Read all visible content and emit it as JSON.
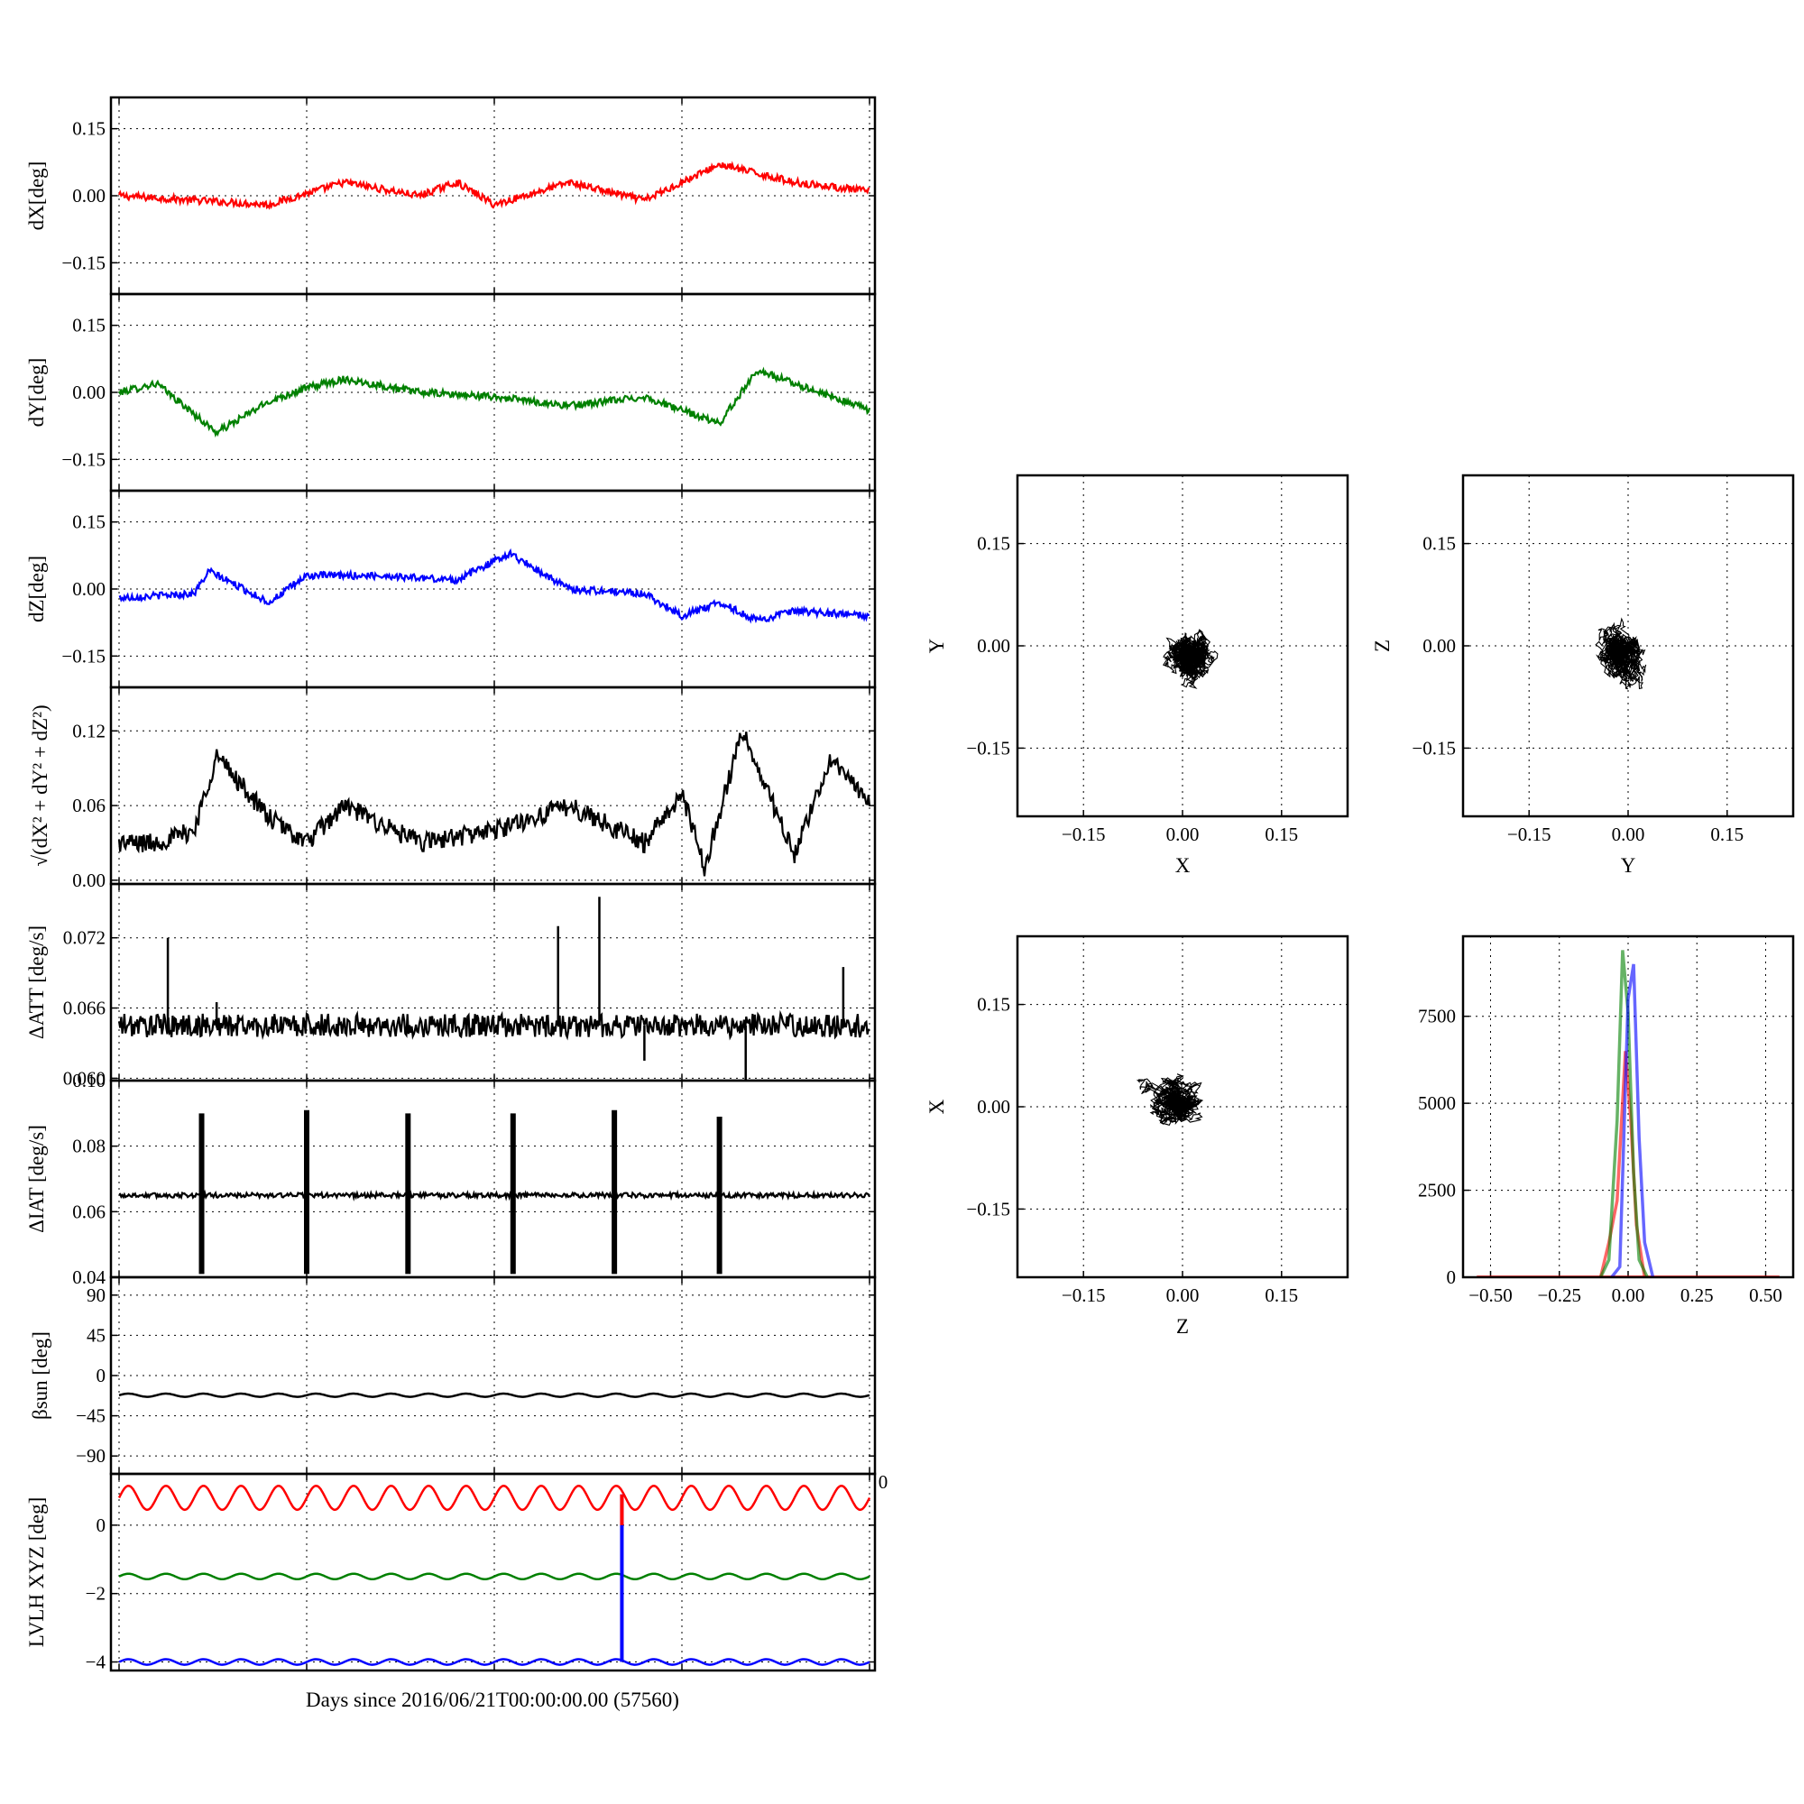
{
  "figure": {
    "xlabel": "Days since 2016/06/21T00:00:00.00 (57560)",
    "stray_tick": "0"
  },
  "colors": {
    "red": "#ff0000",
    "green": "#008000",
    "blue": "#0000ff",
    "black": "#000000"
  },
  "chart_data": [
    {
      "id": "dX",
      "type": "line",
      "ylabel": "dX[deg]",
      "ylim": [
        -0.22,
        0.22
      ],
      "yticks": [
        -0.15,
        0.0,
        0.15
      ],
      "yticklabels": [
        "−0.15",
        "0.00",
        "0.15"
      ],
      "grid": true,
      "series": [
        {
          "color": "red",
          "x": [
            0,
            10,
            20,
            30,
            40,
            45,
            50,
            60,
            70,
            80,
            90,
            100
          ],
          "values": [
            0.0,
            -0.01,
            -0.02,
            0.03,
            0.0,
            0.03,
            -0.02,
            0.03,
            -0.01,
            0.07,
            0.03,
            0.01
          ]
        }
      ]
    },
    {
      "id": "dY",
      "type": "line",
      "ylabel": "dY[deg]",
      "ylim": [
        -0.22,
        0.22
      ],
      "yticks": [
        -0.15,
        0.0,
        0.15
      ],
      "yticklabels": [
        "−0.15",
        "0.00",
        "0.15"
      ],
      "grid": true,
      "series": [
        {
          "color": "green",
          "x": [
            0,
            5,
            13,
            20,
            25,
            30,
            40,
            50,
            60,
            70,
            80,
            85,
            90,
            100
          ],
          "values": [
            0.0,
            0.02,
            -0.09,
            -0.02,
            0.01,
            0.03,
            0.0,
            -0.01,
            -0.03,
            -0.01,
            -0.07,
            0.05,
            0.02,
            -0.04
          ]
        }
      ]
    },
    {
      "id": "dZ",
      "type": "line",
      "ylabel": "dZ[deg]",
      "ylim": [
        -0.22,
        0.22
      ],
      "yticks": [
        -0.15,
        0.0,
        0.15
      ],
      "yticklabels": [
        "−0.15",
        "0.00",
        "0.15"
      ],
      "grid": true,
      "series": [
        {
          "color": "blue",
          "x": [
            0,
            10,
            12,
            20,
            25,
            35,
            45,
            52,
            60,
            70,
            75,
            80,
            85,
            90,
            100
          ],
          "values": [
            -0.02,
            -0.01,
            0.04,
            -0.03,
            0.03,
            0.03,
            0.02,
            0.08,
            0.0,
            -0.01,
            -0.06,
            -0.03,
            -0.07,
            -0.05,
            -0.06
          ]
        }
      ]
    },
    {
      "id": "norm",
      "type": "line",
      "ylabel": "√(dX² + dY² + dZ²)",
      "ylim": [
        -0.003,
        0.155
      ],
      "yticks": [
        0.0,
        0.06,
        0.12
      ],
      "yticklabels": [
        "0.00",
        "0.06",
        "0.12"
      ],
      "grid": true,
      "series": [
        {
          "color": "black",
          "x": [
            0,
            5,
            10,
            13,
            20,
            25,
            30,
            40,
            50,
            60,
            70,
            75,
            78,
            83,
            90,
            95,
            100
          ],
          "values": [
            0.03,
            0.03,
            0.04,
            0.1,
            0.05,
            0.03,
            0.06,
            0.03,
            0.04,
            0.06,
            0.03,
            0.07,
            0.01,
            0.12,
            0.02,
            0.1,
            0.06
          ]
        }
      ]
    },
    {
      "id": "dATT",
      "type": "line",
      "ylabel": "ΔATT [deg/s]",
      "ylim": [
        0.0598,
        0.0766
      ],
      "yticks": [
        0.06,
        0.066,
        0.072
      ],
      "yticklabels": [
        "0.060",
        "0.066",
        "0.072"
      ],
      "grid": true,
      "series": [
        {
          "color": "black",
          "x": [
            0,
            6.5,
            13,
            58.5,
            64,
            70,
            83.5,
            96.5,
            100
          ],
          "values": [
            0.0645,
            0.072,
            0.0665,
            0.073,
            0.0755,
            0.0615,
            0.0595,
            0.0695,
            0.0645
          ]
        }
      ]
    },
    {
      "id": "dIAT",
      "type": "line",
      "ylabel": "ΔIAT [deg/s]",
      "ylim": [
        0.04,
        0.1
      ],
      "yticks": [
        0.04,
        0.06,
        0.08,
        0.1
      ],
      "yticklabels": [
        "0.04",
        "0.06",
        "0.08",
        "0.10"
      ],
      "grid": true,
      "series": [
        {
          "color": "black",
          "x": [
            0,
            11,
            25,
            38.5,
            52.5,
            66,
            80,
            100
          ],
          "values": [
            0.065,
            0.09,
            0.091,
            0.09,
            0.09,
            0.091,
            0.089,
            0.065
          ]
        }
      ]
    },
    {
      "id": "beta",
      "type": "line",
      "ylabel": "βsun [deg]",
      "ylim": [
        -110,
        110
      ],
      "yticks": [
        -90,
        -45,
        0,
        45,
        90
      ],
      "yticklabels": [
        "−90",
        "−45",
        "0",
        "45",
        "90"
      ],
      "grid": true,
      "series": [
        {
          "color": "black",
          "x": [
            0,
            100
          ],
          "values": [
            -22,
            -22
          ]
        }
      ]
    },
    {
      "id": "lvlh",
      "type": "line",
      "ylabel": "LVLH XYZ [deg]",
      "ylim": [
        -4.25,
        1.5
      ],
      "yticks": [
        -4,
        -2,
        0
      ],
      "yticklabels": [
        "−4",
        "−2",
        "0"
      ],
      "grid": true,
      "series": [
        {
          "color": "red",
          "x": [
            0,
            100
          ],
          "values": [
            0.8,
            0.8
          ]
        },
        {
          "color": "green",
          "x": [
            0,
            100
          ],
          "values": [
            -1.5,
            -1.5
          ]
        },
        {
          "color": "blue",
          "x": [
            0,
            100
          ],
          "values": [
            -4.0,
            -4.0
          ]
        }
      ]
    },
    {
      "id": "scatter_xy",
      "type": "scatter",
      "xlabel": "X",
      "ylabel": "Y",
      "xlim": [
        -0.25,
        0.25
      ],
      "ylim": [
        -0.25,
        0.25
      ],
      "xticks": [
        -0.15,
        0.0,
        0.15
      ],
      "xticklabels": [
        "−0.15",
        "0.00",
        "0.15"
      ],
      "yticks": [
        -0.15,
        0.0,
        0.15
      ],
      "yticklabels": [
        "−0.15",
        "0.00",
        "0.15"
      ],
      "grid": true,
      "cluster": {
        "center": [
          0.01,
          -0.02
        ],
        "spread": [
          0.035,
          0.038
        ]
      }
    },
    {
      "id": "scatter_yz",
      "type": "scatter",
      "xlabel": "Y",
      "ylabel": "Z",
      "xlim": [
        -0.25,
        0.25
      ],
      "ylim": [
        -0.25,
        0.25
      ],
      "xticks": [
        -0.15,
        0.0,
        0.15
      ],
      "xticklabels": [
        "−0.15",
        "0.00",
        "0.15"
      ],
      "yticks": [
        -0.15,
        0.0,
        0.15
      ],
      "yticklabels": [
        "−0.15",
        "0.00",
        "0.15"
      ],
      "grid": true,
      "cluster": {
        "center": [
          -0.01,
          -0.01
        ],
        "spread": [
          0.032,
          0.04
        ]
      }
    },
    {
      "id": "scatter_zx",
      "type": "scatter",
      "xlabel": "Z",
      "ylabel": "X",
      "xlim": [
        -0.25,
        0.25
      ],
      "ylim": [
        -0.25,
        0.25
      ],
      "xticks": [
        -0.15,
        0.0,
        0.15
      ],
      "xticklabels": [
        "−0.15",
        "0.00",
        "0.15"
      ],
      "yticks": [
        -0.15,
        0.0,
        0.15
      ],
      "yticklabels": [
        "−0.15",
        "0.00",
        "0.15"
      ],
      "grid": true,
      "cluster": {
        "center": [
          -0.01,
          0.01
        ],
        "spread": [
          0.04,
          0.028
        ]
      }
    },
    {
      "id": "histogram",
      "type": "line",
      "xlabel": "",
      "ylabel": "",
      "xlim": [
        -0.6,
        0.6
      ],
      "ylim": [
        0,
        9800
      ],
      "xticks": [
        -0.5,
        -0.25,
        0.0,
        0.25,
        0.5
      ],
      "xticklabels": [
        "−0.50",
        "−0.25",
        "0.00",
        "0.25",
        "0.50"
      ],
      "yticks": [
        0,
        2500,
        5000,
        7500
      ],
      "yticklabels": [
        "0",
        "2500",
        "5000",
        "7500"
      ],
      "grid": true,
      "series": [
        {
          "color": "red",
          "x": [
            -0.1,
            -0.07,
            -0.04,
            -0.01,
            0.01,
            0.03,
            0.06
          ],
          "values": [
            0,
            1000,
            2200,
            6500,
            4500,
            1500,
            0
          ]
        },
        {
          "color": "green",
          "x": [
            -0.1,
            -0.07,
            -0.04,
            -0.02,
            0.0,
            0.02,
            0.04,
            0.07
          ],
          "values": [
            0,
            500,
            4500,
            9400,
            7600,
            3000,
            500,
            0
          ]
        },
        {
          "color": "blue",
          "x": [
            -0.06,
            -0.03,
            0.0,
            0.02,
            0.04,
            0.06,
            0.09
          ],
          "values": [
            0,
            300,
            8000,
            9000,
            4000,
            1000,
            0
          ]
        }
      ]
    }
  ]
}
